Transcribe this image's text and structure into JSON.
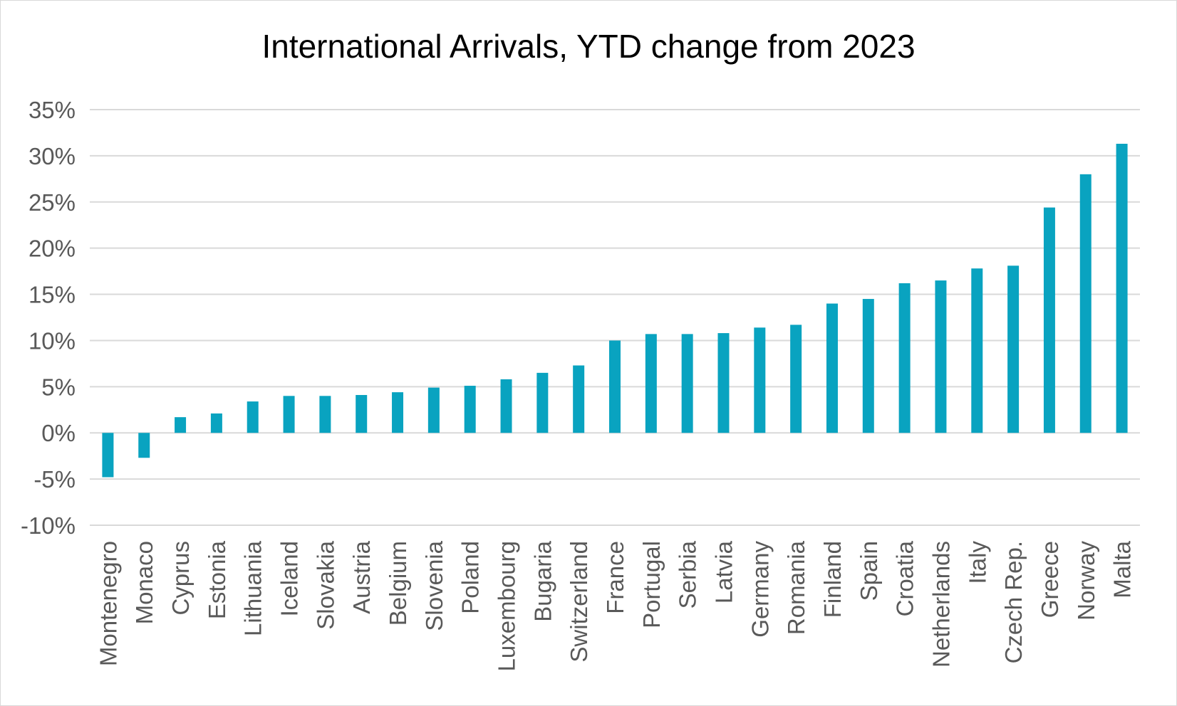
{
  "chart_data": {
    "type": "bar",
    "title": "International Arrivals, YTD change from 2023",
    "xlabel": "",
    "ylabel": "",
    "ylim": [
      -10,
      35
    ],
    "y_ticks": [
      -10,
      -5,
      0,
      5,
      10,
      15,
      20,
      25,
      30,
      35
    ],
    "y_tick_labels": [
      "-10%",
      "-5%",
      "0%",
      "5%",
      "10%",
      "15%",
      "20%",
      "25%",
      "30%",
      "35%"
    ],
    "grid": true,
    "bar_color": "#09A3C0",
    "categories": [
      "Montenegro",
      "Monaco",
      "Cyprus",
      "Estonia",
      "Lithuania",
      "Iceland",
      "Slovakia",
      "Austria",
      "Belgium",
      "Slovenia",
      "Poland",
      "Luxembourg",
      "Bugaria",
      "Switzerland",
      "France",
      "Portugal",
      "Serbia",
      "Latvia",
      "Germany",
      "Romania",
      "Finland",
      "Spain",
      "Croatia",
      "Netherlands",
      "Italy",
      "Czech Rep.",
      "Greece",
      "Norway",
      "Malta"
    ],
    "values": [
      -4.8,
      -2.7,
      1.7,
      2.1,
      3.4,
      4.0,
      4.0,
      4.1,
      4.4,
      4.9,
      5.1,
      5.8,
      6.5,
      7.3,
      10.0,
      10.7,
      10.7,
      10.8,
      11.4,
      11.7,
      14.0,
      14.5,
      16.2,
      16.5,
      17.8,
      18.1,
      24.4,
      28.0,
      31.3
    ]
  }
}
